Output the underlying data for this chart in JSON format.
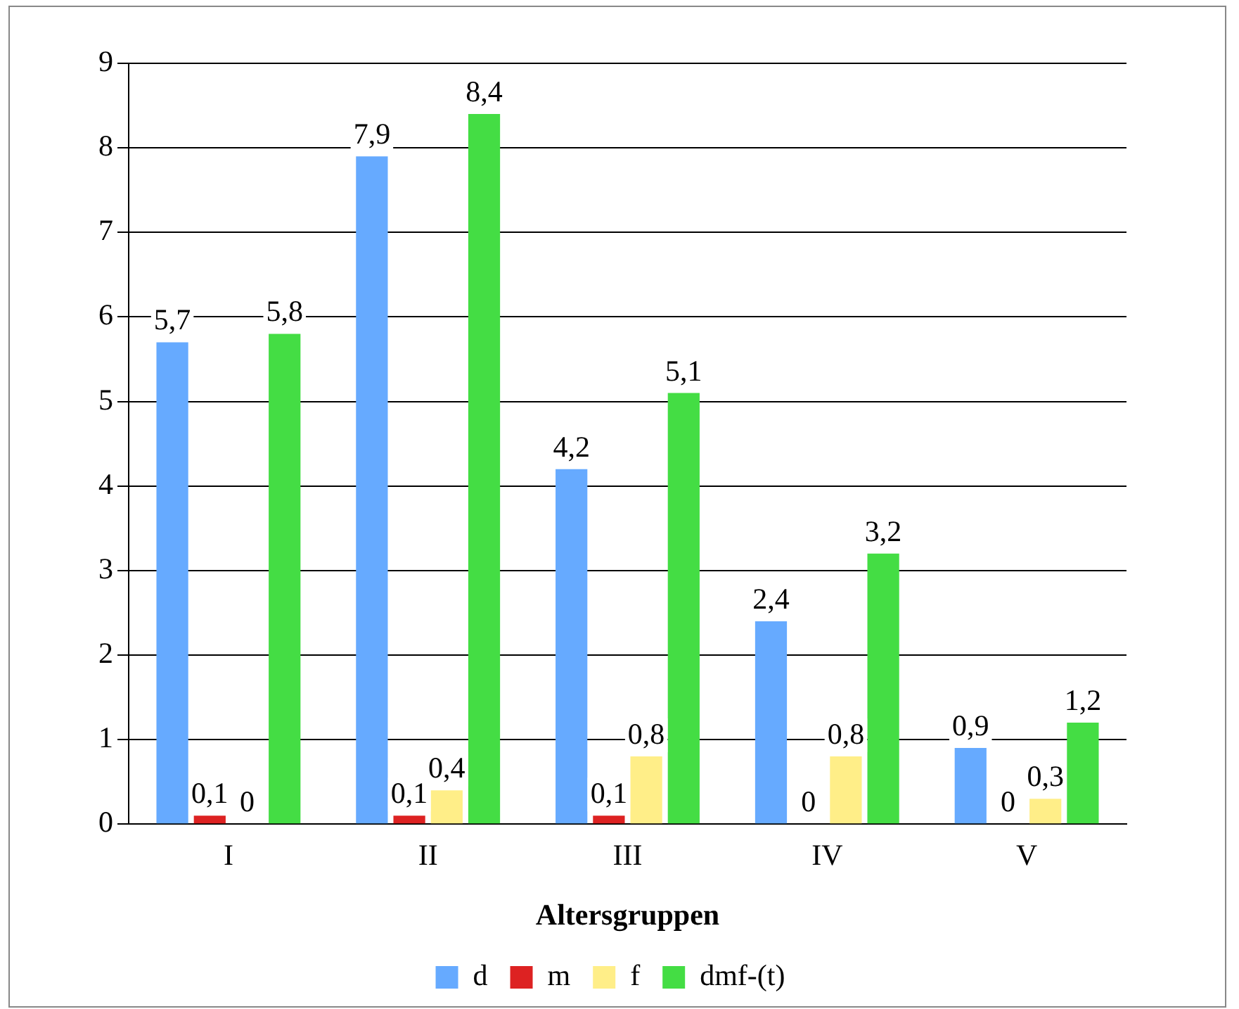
{
  "chart_data": {
    "type": "bar",
    "xlabel": "Altersgruppen",
    "categories": [
      "I",
      "II",
      "III",
      "IV",
      "V"
    ],
    "series": [
      {
        "name": "d",
        "color": "#66aaff",
        "values": [
          5.7,
          7.9,
          4.2,
          2.4,
          0.9
        ],
        "value_labels": [
          "5,7",
          "7,9",
          "4,2",
          "2,4",
          "0,9"
        ]
      },
      {
        "name": "m",
        "color": "#dd2222",
        "values": [
          0.1,
          0.1,
          0.1,
          0,
          0
        ],
        "value_labels": [
          "0,1",
          "0,1",
          "0,1",
          "0",
          "0"
        ]
      },
      {
        "name": "f",
        "color": "#ffee88",
        "values": [
          0,
          0.4,
          0.8,
          0.8,
          0.3
        ],
        "value_labels": [
          "0",
          "0,4",
          "0,8",
          "0,8",
          "0,3"
        ]
      },
      {
        "name": "dmf-(t)",
        "color": "#44dd44",
        "values": [
          5.8,
          8.4,
          5.1,
          3.2,
          1.2
        ],
        "value_labels": [
          "5,8",
          "8,4",
          "5,1",
          "3,2",
          "1,2"
        ]
      }
    ],
    "ylim": [
      0,
      9
    ],
    "yticks": [
      0,
      1,
      2,
      3,
      4,
      5,
      6,
      7,
      8,
      9
    ],
    "grid": "y",
    "legend": "bottom"
  }
}
